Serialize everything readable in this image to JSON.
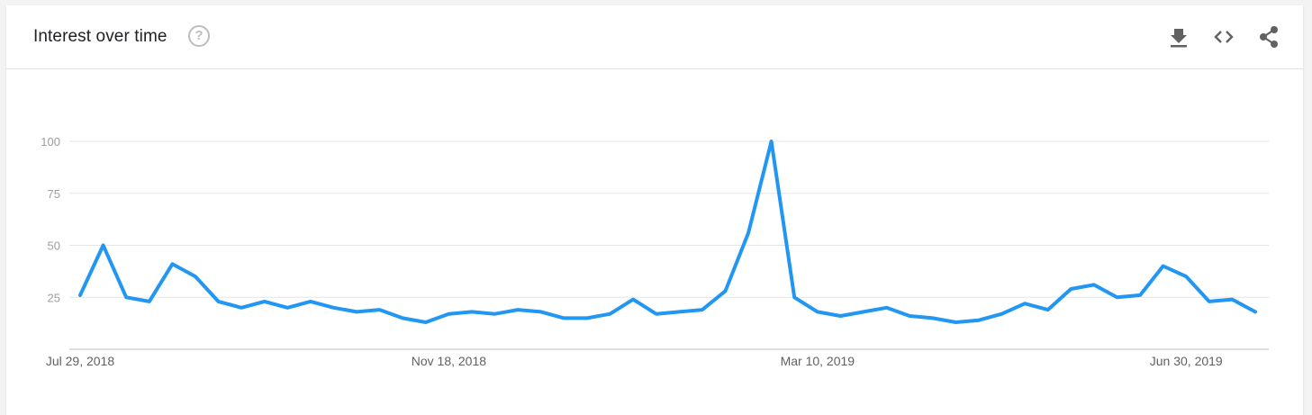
{
  "header": {
    "title": "Interest over time",
    "help_symbol": "?",
    "icons": [
      "help-icon",
      "download-icon",
      "embed-code-icon",
      "share-icon"
    ]
  },
  "colors": {
    "line": "#2196f3",
    "grid": "#e5e5e5",
    "axis": "#bdbdbd",
    "icon": "#616161"
  },
  "chart_data": {
    "type": "line",
    "title": "",
    "xlabel": "",
    "ylabel": "",
    "ylim": [
      0,
      100
    ],
    "y_ticks": [
      25,
      50,
      75,
      100
    ],
    "x_tick_labels": [
      "Jul 29, 2018",
      "Nov 18, 2018",
      "Mar 10, 2019",
      "Jun 30, 2019"
    ],
    "x_tick_indices": [
      0,
      16,
      32,
      48
    ],
    "start_date": "Jul 29, 2018",
    "interval": "weekly",
    "grid": true,
    "legend": "none",
    "series": [
      {
        "values": [
          26,
          50,
          25,
          23,
          41,
          35,
          23,
          20,
          23,
          20,
          23,
          20,
          18,
          19,
          15,
          13,
          17,
          18,
          17,
          19,
          18,
          15,
          15,
          17,
          24,
          17,
          18,
          19,
          28,
          56,
          100,
          25,
          18,
          16,
          18,
          20,
          16,
          15,
          13,
          14,
          17,
          22,
          19,
          29,
          31,
          25,
          26,
          40,
          35,
          23,
          24,
          18
        ]
      }
    ]
  }
}
